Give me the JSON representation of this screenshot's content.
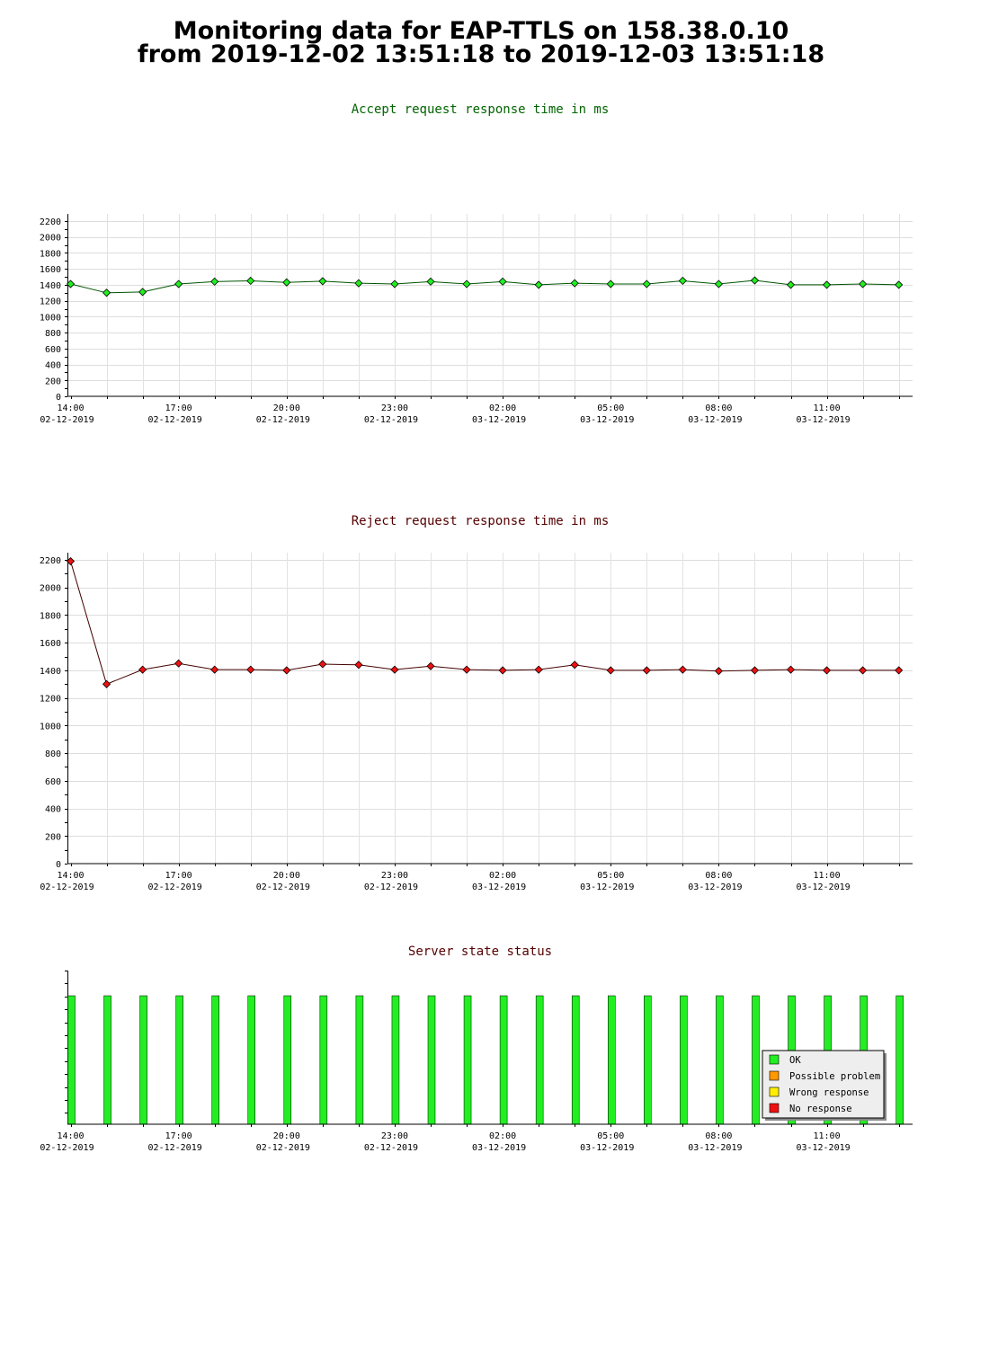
{
  "header": {
    "title_line1": "Monitoring data for EAP-TTLS on 158.38.0.10",
    "title_line2": "from 2019-12-02 13:51:18 to 2019-12-03 13:51:18"
  },
  "x_axis": {
    "labels": [
      {
        "time": "14:00",
        "date": "02-12-2019"
      },
      {
        "time": "17:00",
        "date": "02-12-2019"
      },
      {
        "time": "20:00",
        "date": "02-12-2019"
      },
      {
        "time": "23:00",
        "date": "02-12-2019"
      },
      {
        "time": "02:00",
        "date": "03-12-2019"
      },
      {
        "time": "05:00",
        "date": "03-12-2019"
      },
      {
        "time": "08:00",
        "date": "03-12-2019"
      },
      {
        "time": "11:00",
        "date": "03-12-2019"
      }
    ]
  },
  "chart_data": [
    {
      "type": "line",
      "title": "Accept request response time in ms",
      "title_color": "#006400",
      "marker_color": "#22ee22",
      "line_color": "#005500",
      "ylim": [
        0,
        2200
      ],
      "yticks": [
        0,
        200,
        400,
        600,
        800,
        1000,
        1200,
        1400,
        1600,
        1800,
        2000,
        2200
      ],
      "grid": true,
      "x": [
        "2019-12-02 14:00",
        "2019-12-02 15:00",
        "2019-12-02 16:00",
        "2019-12-02 17:00",
        "2019-12-02 18:00",
        "2019-12-02 19:00",
        "2019-12-02 20:00",
        "2019-12-02 21:00",
        "2019-12-02 22:00",
        "2019-12-02 23:00",
        "2019-12-03 00:00",
        "2019-12-03 01:00",
        "2019-12-03 02:00",
        "2019-12-03 03:00",
        "2019-12-03 04:00",
        "2019-12-03 05:00",
        "2019-12-03 06:00",
        "2019-12-03 07:00",
        "2019-12-03 08:00",
        "2019-12-03 09:00",
        "2019-12-03 10:00",
        "2019-12-03 11:00",
        "2019-12-03 12:00",
        "2019-12-03 13:00"
      ],
      "values": [
        1410,
        1300,
        1310,
        1410,
        1440,
        1450,
        1430,
        1445,
        1420,
        1410,
        1440,
        1410,
        1440,
        1400,
        1420,
        1410,
        1410,
        1450,
        1410,
        1455,
        1400,
        1400,
        1410,
        1400
      ]
    },
    {
      "type": "line",
      "title": "Reject request response time in ms",
      "title_color": "#550000",
      "marker_color": "#ee1111",
      "line_color": "#440000",
      "ylim": [
        0,
        2200
      ],
      "yticks": [
        0,
        200,
        400,
        600,
        800,
        1000,
        1200,
        1400,
        1600,
        1800,
        2000,
        2200
      ],
      "grid": true,
      "x": [
        "2019-12-02 14:00",
        "2019-12-02 15:00",
        "2019-12-02 16:00",
        "2019-12-02 17:00",
        "2019-12-02 18:00",
        "2019-12-02 19:00",
        "2019-12-02 20:00",
        "2019-12-02 21:00",
        "2019-12-02 22:00",
        "2019-12-02 23:00",
        "2019-12-03 00:00",
        "2019-12-03 01:00",
        "2019-12-03 02:00",
        "2019-12-03 03:00",
        "2019-12-03 04:00",
        "2019-12-03 05:00",
        "2019-12-03 06:00",
        "2019-12-03 07:00",
        "2019-12-03 08:00",
        "2019-12-03 09:00",
        "2019-12-03 10:00",
        "2019-12-03 11:00",
        "2019-12-03 12:00",
        "2019-12-03 13:00"
      ],
      "values": [
        2190,
        1300,
        1405,
        1450,
        1405,
        1405,
        1400,
        1445,
        1440,
        1405,
        1430,
        1405,
        1400,
        1405,
        1440,
        1400,
        1400,
        1405,
        1395,
        1400,
        1405,
        1400,
        1400,
        1400
      ]
    },
    {
      "type": "bar",
      "title": "Server state status",
      "title_color": "#550000",
      "x": [
        "2019-12-02 14:00",
        "2019-12-02 15:00",
        "2019-12-02 16:00",
        "2019-12-02 17:00",
        "2019-12-02 18:00",
        "2019-12-02 19:00",
        "2019-12-02 20:00",
        "2019-12-02 21:00",
        "2019-12-02 22:00",
        "2019-12-02 23:00",
        "2019-12-03 00:00",
        "2019-12-03 01:00",
        "2019-12-03 02:00",
        "2019-12-03 03:00",
        "2019-12-03 04:00",
        "2019-12-03 05:00",
        "2019-12-03 06:00",
        "2019-12-03 07:00",
        "2019-12-03 08:00",
        "2019-12-03 09:00",
        "2019-12-03 10:00",
        "2019-12-03 11:00",
        "2019-12-03 12:00",
        "2019-12-03 13:00"
      ],
      "states": [
        "OK",
        "OK",
        "OK",
        "OK",
        "OK",
        "OK",
        "OK",
        "OK",
        "OK",
        "OK",
        "OK",
        "OK",
        "OK",
        "OK",
        "OK",
        "OK",
        "OK",
        "OK",
        "OK",
        "OK",
        "OK",
        "OK",
        "OK",
        "OK"
      ],
      "legend_position": "bottom-right",
      "legend": [
        {
          "label": "OK",
          "color": "#22ee22"
        },
        {
          "label": "Possible problem",
          "color": "#ff9900"
        },
        {
          "label": "Wrong response",
          "color": "#ffee00"
        },
        {
          "label": "No response",
          "color": "#ee1111"
        }
      ]
    }
  ]
}
